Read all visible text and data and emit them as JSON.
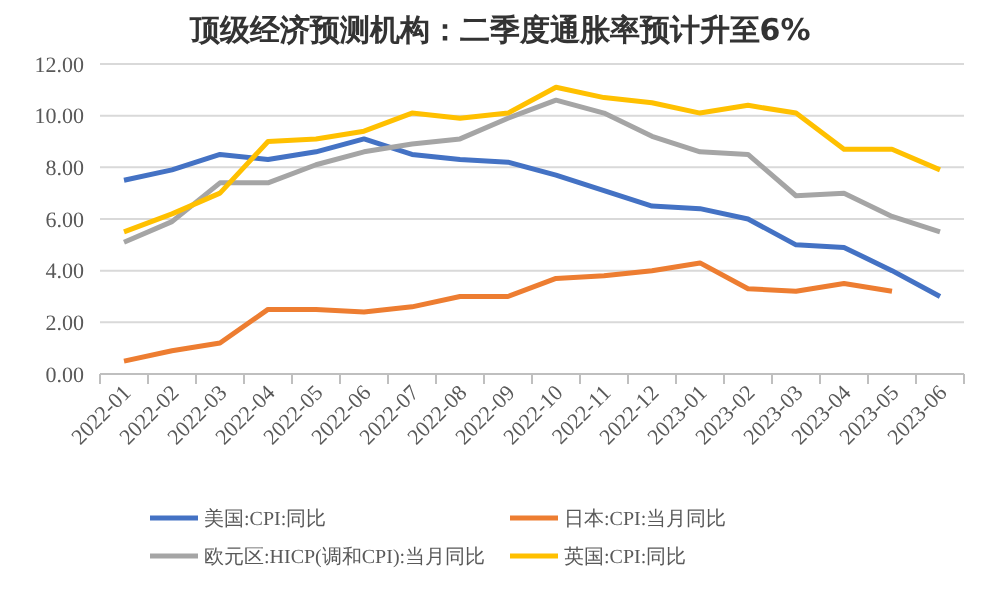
{
  "chart_data": {
    "type": "line",
    "title": "顶级经济预测机构：二季度通胀率预计升至6%",
    "categories": [
      "2022-01",
      "2022-02",
      "2022-03",
      "2022-04",
      "2022-05",
      "2022-06",
      "2022-07",
      "2022-08",
      "2022-09",
      "2022-10",
      "2022-11",
      "2022-12",
      "2023-01",
      "2023-02",
      "2023-03",
      "2023-04",
      "2023-05",
      "2023-06"
    ],
    "series": [
      {
        "name": "美国:CPI:同比",
        "color": "#4472c4",
        "values": [
          7.5,
          7.9,
          8.5,
          8.3,
          8.6,
          9.1,
          8.5,
          8.3,
          8.2,
          7.7,
          7.1,
          6.5,
          6.4,
          6.0,
          5.0,
          4.9,
          4.0,
          3.0
        ]
      },
      {
        "name": "日本:CPI:当月同比",
        "color": "#ed7d31",
        "values": [
          0.5,
          0.9,
          1.2,
          2.5,
          2.5,
          2.4,
          2.6,
          3.0,
          3.0,
          3.7,
          3.8,
          4.0,
          4.3,
          3.3,
          3.2,
          3.5,
          3.2,
          null
        ]
      },
      {
        "name": "欧元区:HICP(调和CPI):当月同比",
        "color": "#a5a5a5",
        "values": [
          5.1,
          5.9,
          7.4,
          7.4,
          8.1,
          8.6,
          8.9,
          9.1,
          9.9,
          10.6,
          10.1,
          9.2,
          8.6,
          8.5,
          6.9,
          7.0,
          6.1,
          5.5
        ]
      },
      {
        "name": "英国:CPI:同比",
        "color": "#ffc000",
        "values": [
          5.5,
          6.2,
          7.0,
          9.0,
          9.1,
          9.4,
          10.1,
          9.9,
          10.1,
          11.1,
          10.7,
          10.5,
          10.1,
          10.4,
          10.1,
          8.7,
          8.7,
          7.9
        ]
      }
    ],
    "ylim": [
      0,
      12
    ],
    "yticks": [
      {
        "value": 0,
        "label": "0.00"
      },
      {
        "value": 2,
        "label": "2.00"
      },
      {
        "value": 4,
        "label": "4.00"
      },
      {
        "value": 6,
        "label": "6.00"
      },
      {
        "value": 8,
        "label": "8.00"
      },
      {
        "value": 10,
        "label": "10.00"
      },
      {
        "value": 12,
        "label": "12.00"
      }
    ],
    "grid": "y",
    "legend": "bottom",
    "marker": "none",
    "line_style": "solid"
  }
}
